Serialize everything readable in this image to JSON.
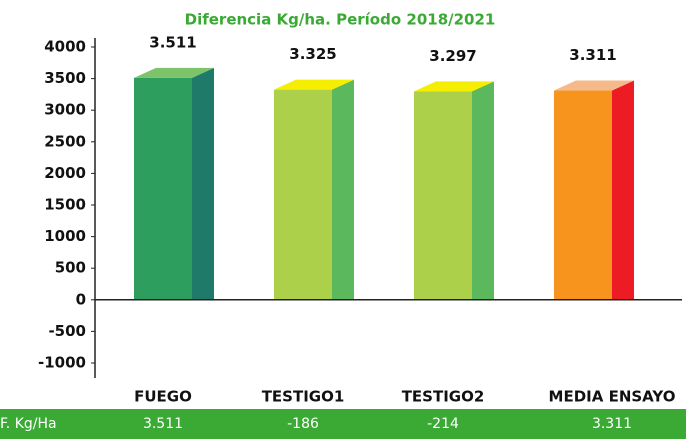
{
  "chart_data": {
    "type": "bar3d",
    "title": "Diferencia Kg/ha. Período 2018/2021",
    "categories": [
      "FUEGO",
      "TESTIGO1",
      "TESTIGO2",
      "MEDIA ENSAYO"
    ],
    "values": [
      3511,
      3325,
      3297,
      3311
    ],
    "value_labels": [
      "3.511",
      "3.325",
      "3.297",
      "3.311"
    ],
    "colors": [
      {
        "front": "#2e9e5e",
        "side": "#1f7a6a",
        "top": "#7cc36a"
      },
      {
        "front": "#acd04a",
        "side": "#5cb85c",
        "top": "#f5ee00"
      },
      {
        "front": "#acd04a",
        "side": "#5cb85c",
        "top": "#f5ee00"
      },
      {
        "front": "#f7941d",
        "side": "#ed1c24",
        "top": "#f5b98a"
      }
    ],
    "ylim": [
      -1000,
      4000
    ],
    "yticks": [
      -1000,
      -500,
      0,
      500,
      1000,
      1500,
      2000,
      2500,
      3000,
      3500,
      4000
    ],
    "difference": {
      "label": "F. Kg/Ha",
      "values": [
        3511,
        -186,
        -214,
        3311
      ],
      "value_labels": [
        "3.511",
        "-186",
        "-214",
        "3.311"
      ]
    }
  }
}
